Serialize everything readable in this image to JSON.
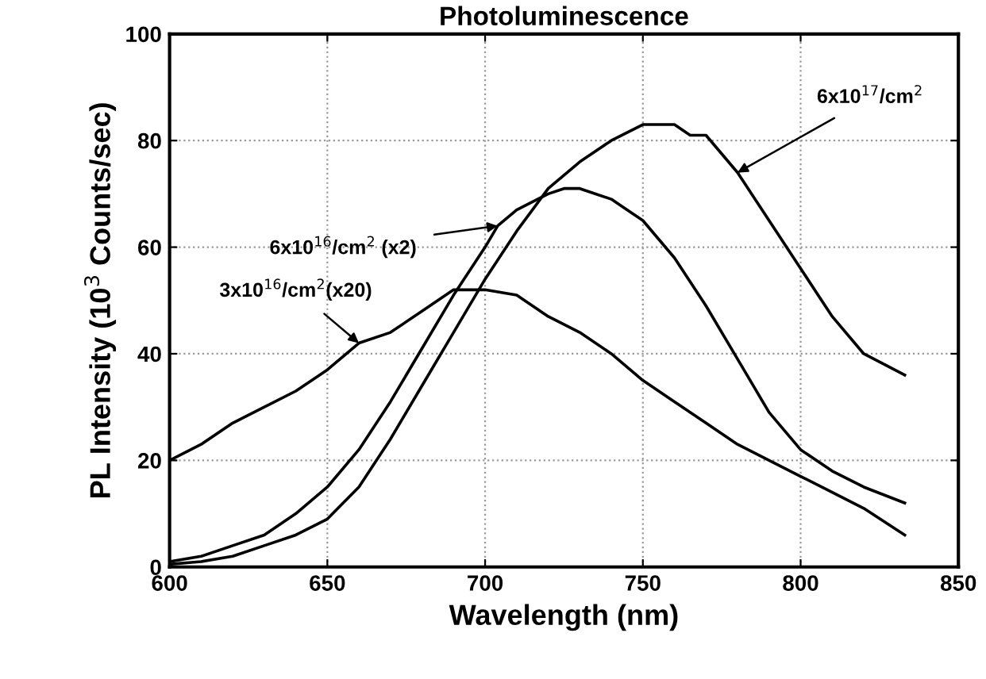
{
  "chart_data": {
    "type": "line",
    "title": "Photoluminescence",
    "xlabel": "Wavelength (nm)",
    "ylabel": "PL Intensity (10$^{3}$ Counts/sec)",
    "xlim": [
      600,
      850
    ],
    "xticks": [
      600,
      650,
      700,
      750,
      800,
      850
    ],
    "ylim": [
      0,
      100
    ],
    "yticks": [
      0,
      20,
      40,
      60,
      80,
      100
    ],
    "grid": true,
    "line_style": "solid",
    "marker": "none",
    "series": [
      {
        "color": "#000000",
        "x": [
          600,
          610,
          620,
          630,
          640,
          650,
          660,
          670,
          680,
          690,
          700,
          710,
          720,
          730,
          740,
          750,
          760,
          770,
          780,
          790,
          800,
          810,
          820,
          833
        ],
        "values": [
          20,
          23,
          27,
          30,
          33,
          37,
          42,
          44,
          48,
          52,
          52,
          51,
          47,
          44,
          40,
          35,
          31,
          27,
          23,
          20,
          17,
          14,
          11,
          6
        ]
      },
      {
        "color": "#000000",
        "x": [
          600,
          610,
          620,
          630,
          640,
          650,
          660,
          670,
          680,
          690,
          700,
          704,
          710,
          720,
          725,
          730,
          740,
          750,
          760,
          770,
          780,
          790,
          800,
          810,
          820,
          833
        ],
        "values": [
          1,
          2,
          4,
          6,
          10,
          15,
          22,
          31,
          41,
          51,
          60,
          64,
          67,
          70,
          71,
          71,
          69,
          65,
          58,
          49,
          39,
          29,
          22,
          18,
          15,
          12
        ]
      },
      {
        "color": "#000000",
        "x": [
          600,
          610,
          620,
          630,
          640,
          650,
          660,
          670,
          680,
          690,
          700,
          710,
          720,
          730,
          740,
          750,
          760,
          765,
          770,
          780,
          790,
          800,
          810,
          820,
          833
        ],
        "values": [
          0.5,
          1,
          2,
          4,
          6,
          9,
          15,
          24,
          34,
          44,
          54,
          63,
          71,
          76,
          80,
          83,
          83,
          81,
          81,
          74,
          65,
          56,
          47,
          40,
          36
        ]
      }
    ],
    "annotations": [
      {
        "text": "3x10$^{16}$/cm$^{2}$(x20)",
        "x": 660,
        "y": 42
      },
      {
        "text": "6x10$^{16}$/cm$^{2}$ (x2)",
        "x": 704,
        "y": 64
      },
      {
        "text": "6x10$^{17}$/cm$^{2}$",
        "x": 780,
        "y": 74
      }
    ]
  }
}
